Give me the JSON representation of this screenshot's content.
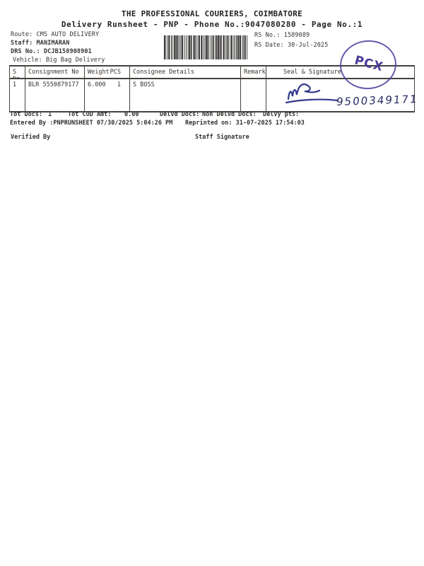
{
  "header": {
    "title": "THE PROFESSIONAL COURIERS, COIMBATORE",
    "subtitle": "Delivery Runsheet - PNP - Phone No.:9047080280 - Page No.:1"
  },
  "info": {
    "route_label": "Route:",
    "route_value": "CMS AUTO DELIVERY",
    "staff_label": "Staff:",
    "staff_value": "MANIMARAN",
    "drs_label": "DRS No.:",
    "drs_value": "DCJB158908901",
    "vehicle_label": "Vehicle:",
    "vehicle_value": "Big Bag Delivery",
    "rs_no_label": "RS No.:",
    "rs_no_value": "1589089",
    "rs_date_label": "RS Date:",
    "rs_date_value": "30-Jul-2025"
  },
  "stamp": {
    "text": "PCX",
    "color": "#463a97"
  },
  "table": {
    "headers": [
      "S No",
      "Consignment No",
      "Weight",
      "PCS",
      "Consignee Details",
      "Remarks",
      "Seal & Signature"
    ],
    "rows": [
      {
        "s_no": "1",
        "consignment_no": "BLR 5550879177",
        "weight": "6.000",
        "pcs": "1",
        "consignee_details": "S BOSS",
        "remarks": "",
        "seal_signature": ""
      }
    ]
  },
  "handwriting": {
    "number": "9500349171"
  },
  "summary": {
    "tot_docs_label": "Tot Docs:",
    "tot_docs_value": "1",
    "tot_cod_label": "Tot COD Amt:",
    "tot_cod_value": "0.00",
    "delvd_docs_label": "Delvd Docs:",
    "non_delvd_docs_label": "Non Delvd Docs:",
    "delvy_pts_label": "Delvy pts:",
    "entered_by": "Entered By :PNPRUNSHEET 07/30/2025 5:04:26 PM",
    "reprinted_on": "Reprinted on: 31-07-2025 17:54:03",
    "verified_by_label": "Verified By",
    "staff_signature_label": "Staff Signature"
  },
  "colors": {
    "stamp_purple": "#463a97",
    "handwriting_ink": "#2a2d66",
    "print_text": "#383430",
    "table_border": "#45413c"
  }
}
